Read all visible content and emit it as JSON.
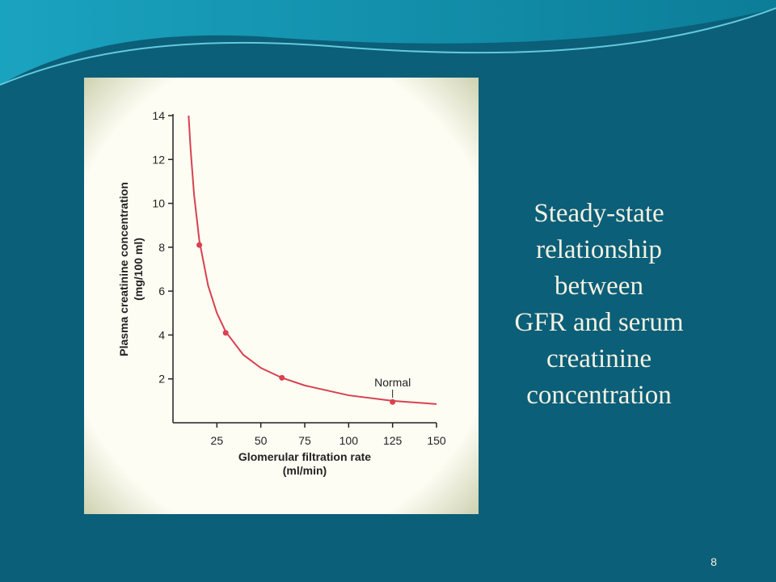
{
  "chart_data": {
    "type": "line",
    "x_label": [
      "Glomerular filtration rate",
      "(ml/min)"
    ],
    "y_label": [
      "Plasma creatinine concentration",
      "(mg/100 ml)"
    ],
    "xlim": [
      0,
      150
    ],
    "xticks": [
      25,
      50,
      75,
      100,
      125,
      150
    ],
    "ylim": [
      0,
      14
    ],
    "yticks": [
      2,
      4,
      6,
      8,
      10,
      12,
      14
    ],
    "series": [
      {
        "color": "#d9414f",
        "x": [
          8.9,
          10,
          12,
          15,
          20,
          25,
          30,
          40,
          50,
          62,
          75,
          100,
          125,
          150
        ],
        "values": [
          14,
          12.5,
          10.4,
          8.3,
          6.25,
          5,
          4.15,
          3.1,
          2.5,
          2.05,
          1.7,
          1.25,
          1.0,
          0.85
        ]
      }
    ],
    "points": {
      "color": "#d9414f",
      "x": [
        15,
        30,
        62,
        125
      ],
      "values": [
        8.1,
        4.1,
        2.05,
        0.95
      ]
    },
    "annotation": {
      "text": "Normal",
      "x": 125
    }
  },
  "slide": {
    "text": [
      "Steady-state",
      "relationship",
      "between",
      "GFR and serum",
      "creatinine",
      "concentration"
    ],
    "page_number": 8
  }
}
